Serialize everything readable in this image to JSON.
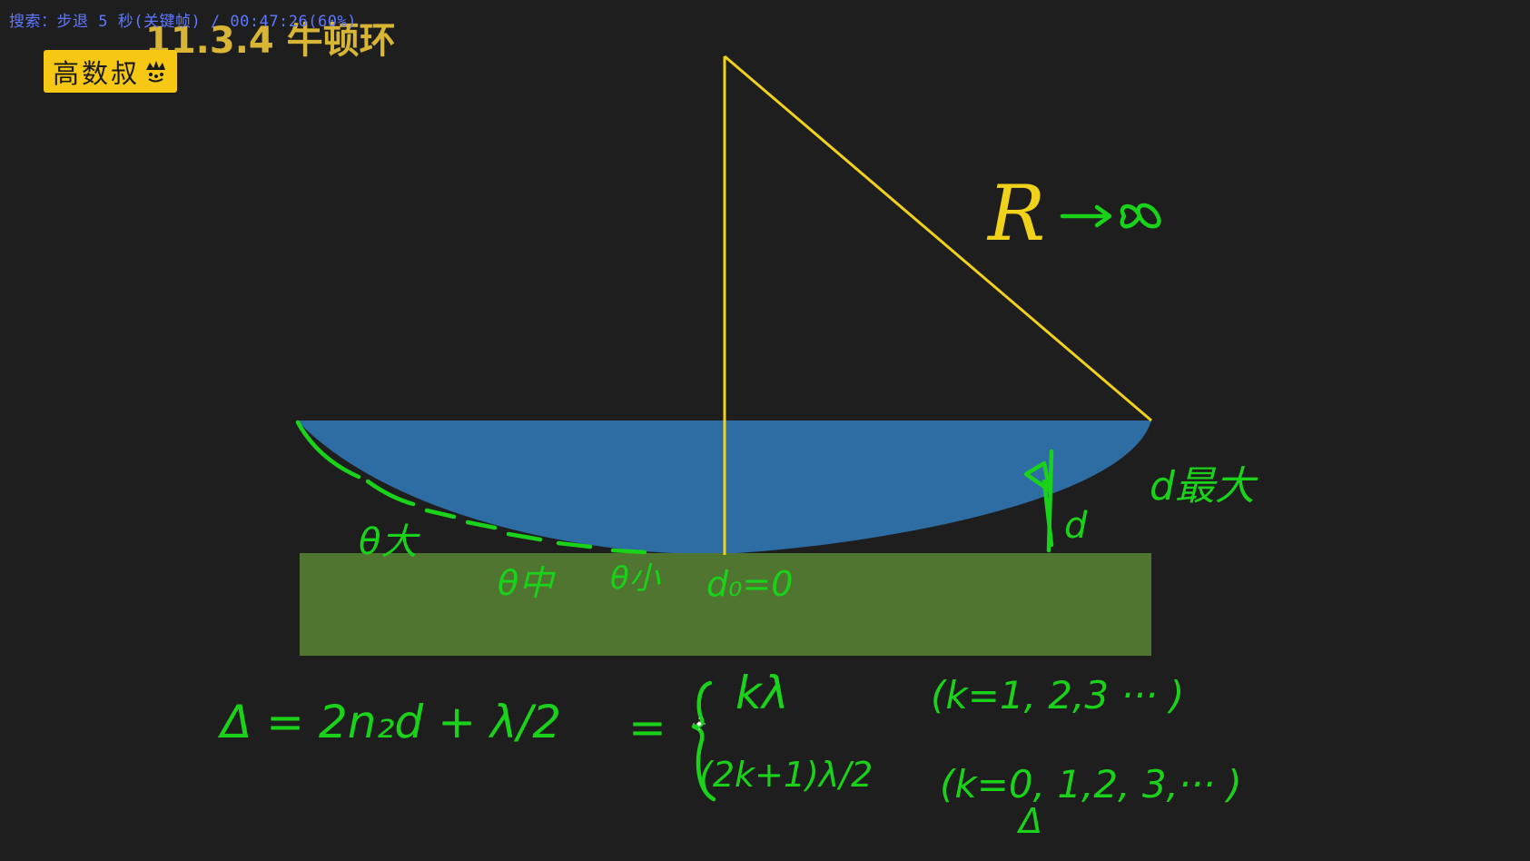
{
  "player": {
    "osd_text": "搜索：步退 5 秒(关键帧) / 00:47:26(60%)"
  },
  "lesson": {
    "title": "11.3.4 牛顿环"
  },
  "logo": {
    "text": "高数叔",
    "icon": "crown-icon",
    "background": "#f6c713"
  },
  "colors": {
    "background": "#1e1e1e",
    "lens": "#2e6da4",
    "plate": "#4f7530",
    "geometry": "#f0d21a",
    "ink": "#1bd21b"
  },
  "board": {
    "radius_label": "R",
    "radius_tends": "→∞",
    "thickness_label": "d",
    "max_label": "d最大",
    "theta_large": "θ大",
    "theta_mid": "θ中",
    "theta_small": "θ小",
    "d_zero": "d₀=0",
    "equation": {
      "lhs": "Δ = 2n₂d + λ/2",
      "equals": "=",
      "case1": "kλ",
      "case1_cond": "(k=1, 2,3 ··· )",
      "case2": "(2k+1)λ/2",
      "case2_cond": "(k=0, 1,2, 3,··· )",
      "marker": "Δ"
    }
  }
}
